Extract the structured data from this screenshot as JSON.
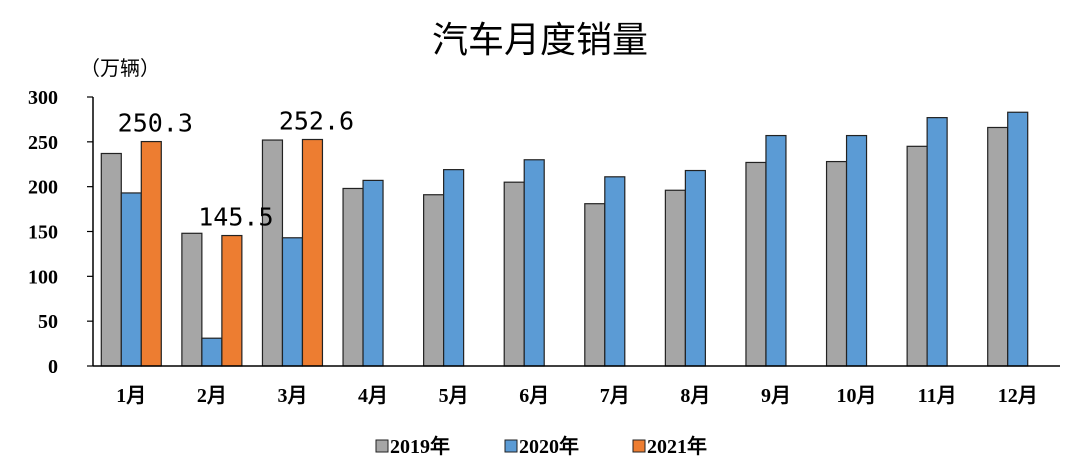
{
  "chart_data": {
    "type": "bar",
    "title": "汽车月度销量",
    "ylabel": "（万辆）",
    "xlabel": "",
    "ylim": [
      0,
      300
    ],
    "yticks": [
      0,
      50,
      100,
      150,
      200,
      250,
      300
    ],
    "grid": false,
    "legend_position": "bottom",
    "categories": [
      "1月",
      "2月",
      "3月",
      "4月",
      "5月",
      "6月",
      "7月",
      "8月",
      "9月",
      "10月",
      "11月",
      "12月"
    ],
    "series": [
      {
        "name": "2019年",
        "color": "#a6a6a6",
        "values": [
          237,
          148,
          252,
          198,
          191,
          205,
          181,
          196,
          227,
          228,
          245,
          266
        ]
      },
      {
        "name": "2020年",
        "color": "#5b9bd5",
        "values": [
          193,
          31,
          143,
          207,
          219,
          230,
          211,
          218,
          257,
          257,
          277,
          283
        ]
      },
      {
        "name": "2021年",
        "color": "#ed7d31",
        "values": [
          250.3,
          145.5,
          252.6,
          null,
          null,
          null,
          null,
          null,
          null,
          null,
          null,
          null
        ]
      }
    ],
    "data_labels": [
      {
        "series": 2,
        "index": 0,
        "text": "250.3"
      },
      {
        "series": 2,
        "index": 1,
        "text": "145.5"
      },
      {
        "series": 2,
        "index": 2,
        "text": "252.6"
      }
    ]
  }
}
